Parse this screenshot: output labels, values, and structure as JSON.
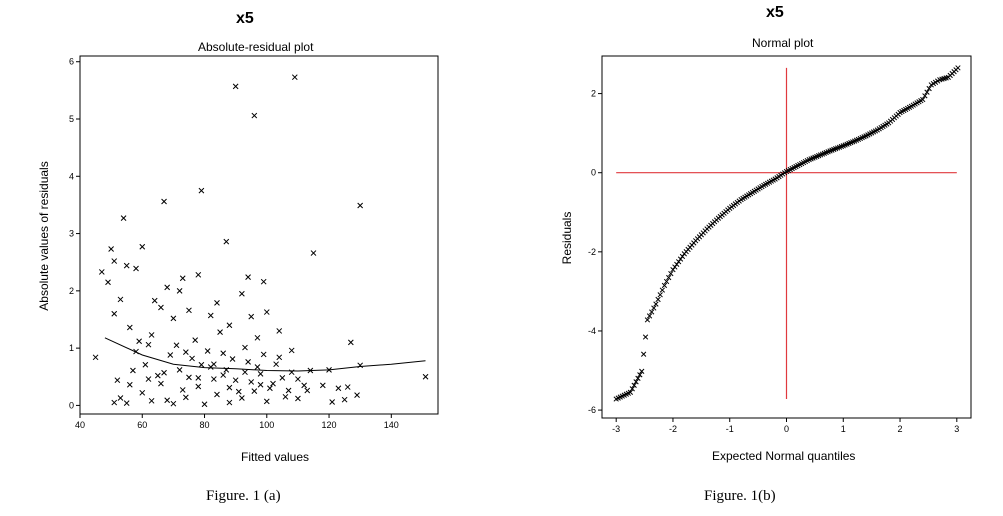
{
  "panel_a": {
    "var_title": "x5",
    "plot_title": "Absolute-residual plot",
    "xlabel": "Fitted values",
    "ylabel": "Absolute values of residuals",
    "caption": "Figure. 1 (a)"
  },
  "panel_b": {
    "var_title": "x5",
    "plot_title": "Normal plot",
    "xlabel": "Expected Normal quantiles",
    "ylabel": "Residuals",
    "caption": "Figure. 1(b)"
  },
  "chart_data": [
    {
      "type": "scatter",
      "title": "Absolute-residual plot",
      "xlabel": "Fitted values",
      "ylabel": "Absolute values of residuals",
      "xlim": [
        40,
        155
      ],
      "ylim": [
        -0.15,
        6.1
      ],
      "xticks": [
        40,
        60,
        80,
        100,
        120,
        140
      ],
      "yticks": [
        0,
        1,
        2,
        3,
        4,
        5,
        6
      ],
      "grid": false,
      "marker": "x",
      "points": [
        [
          45,
          0.84
        ],
        [
          47,
          2.33
        ],
        [
          49,
          2.15
        ],
        [
          50,
          2.73
        ],
        [
          51,
          2.52
        ],
        [
          54,
          3.27
        ],
        [
          55,
          2.44
        ],
        [
          53,
          1.85
        ],
        [
          58,
          2.39
        ],
        [
          60,
          2.77
        ],
        [
          67,
          3.56
        ],
        [
          68,
          2.06
        ],
        [
          73,
          2.22
        ],
        [
          79,
          3.75
        ],
        [
          78,
          2.28
        ],
        [
          87,
          2.86
        ],
        [
          90,
          5.57
        ],
        [
          94,
          2.24
        ],
        [
          96,
          5.06
        ],
        [
          99,
          2.16
        ],
        [
          109,
          5.73
        ],
        [
          115,
          2.66
        ],
        [
          127,
          1.1
        ],
        [
          130,
          3.49
        ],
        [
          151,
          0.5
        ],
        [
          120,
          0.62
        ],
        [
          114,
          0.61
        ],
        [
          126,
          0.32
        ],
        [
          129,
          0.18
        ],
        [
          123,
          0.3
        ],
        [
          121,
          0.06
        ],
        [
          125,
          0.1
        ],
        [
          118,
          0.35
        ],
        [
          113,
          0.26
        ],
        [
          110,
          0.46
        ],
        [
          130,
          0.7
        ],
        [
          92,
          1.95
        ],
        [
          84,
          1.79
        ],
        [
          72,
          2.0
        ],
        [
          64,
          1.83
        ],
        [
          51,
          1.6
        ],
        [
          56,
          1.36
        ],
        [
          59,
          1.12
        ],
        [
          62,
          1.06
        ],
        [
          66,
          1.71
        ],
        [
          70,
          1.52
        ],
        [
          75,
          1.66
        ],
        [
          82,
          1.57
        ],
        [
          88,
          1.4
        ],
        [
          95,
          1.55
        ],
        [
          100,
          1.63
        ],
        [
          104,
          1.3
        ],
        [
          97,
          1.18
        ],
        [
          108,
          0.96
        ],
        [
          53,
          0.13
        ],
        [
          52,
          0.44
        ],
        [
          51,
          0.05
        ],
        [
          57,
          0.61
        ],
        [
          55,
          0.04
        ],
        [
          60,
          0.22
        ],
        [
          63,
          0.08
        ],
        [
          65,
          0.52
        ],
        [
          68,
          0.09
        ],
        [
          70,
          0.03
        ],
        [
          72,
          0.62
        ],
        [
          74,
          0.14
        ],
        [
          76,
          0.82
        ],
        [
          78,
          0.33
        ],
        [
          80,
          0.02
        ],
        [
          82,
          0.67
        ],
        [
          84,
          0.19
        ],
        [
          86,
          0.91
        ],
        [
          88,
          0.05
        ],
        [
          90,
          0.44
        ],
        [
          92,
          0.13
        ],
        [
          94,
          0.76
        ],
        [
          96,
          0.25
        ],
        [
          98,
          0.55
        ],
        [
          100,
          0.07
        ],
        [
          102,
          0.38
        ],
        [
          104,
          0.84
        ],
        [
          106,
          0.15
        ],
        [
          108,
          0.58
        ],
        [
          110,
          0.12
        ],
        [
          112,
          0.35
        ],
        [
          58,
          0.94
        ],
        [
          61,
          0.71
        ],
        [
          63,
          1.23
        ],
        [
          66,
          0.38
        ],
        [
          69,
          0.88
        ],
        [
          71,
          1.05
        ],
        [
          73,
          0.27
        ],
        [
          75,
          0.49
        ],
        [
          77,
          1.14
        ],
        [
          79,
          0.71
        ],
        [
          81,
          0.95
        ],
        [
          83,
          0.46
        ],
        [
          85,
          1.28
        ],
        [
          87,
          0.62
        ],
        [
          89,
          0.81
        ],
        [
          91,
          0.24
        ],
        [
          93,
          1.01
        ],
        [
          95,
          0.41
        ],
        [
          97,
          0.67
        ],
        [
          99,
          0.89
        ],
        [
          101,
          0.3
        ],
        [
          103,
          0.72
        ],
        [
          105,
          0.48
        ],
        [
          107,
          0.26
        ],
        [
          56,
          0.36
        ],
        [
          62,
          0.46
        ],
        [
          67,
          0.57
        ],
        [
          74,
          0.93
        ],
        [
          78,
          0.48
        ],
        [
          83,
          0.72
        ],
        [
          88,
          0.31
        ],
        [
          93,
          0.58
        ],
        [
          98,
          0.36
        ],
        [
          86,
          0.53
        ]
      ],
      "trend_line": {
        "x": [
          48,
          60,
          70,
          80,
          90,
          100,
          110,
          120,
          130,
          140,
          151
        ],
        "y": [
          1.18,
          0.88,
          0.72,
          0.66,
          0.64,
          0.61,
          0.6,
          0.62,
          0.68,
          0.72,
          0.78
        ]
      }
    },
    {
      "type": "scatter",
      "title": "Normal plot",
      "xlabel": "Expected Normal quantiles",
      "ylabel": "Residuals",
      "xlim": [
        -3.25,
        3.25
      ],
      "ylim": [
        -6.2,
        2.95
      ],
      "xticks": [
        -3,
        -2,
        -1,
        0,
        1,
        2,
        3
      ],
      "yticks": [
        -6,
        -4,
        -2,
        0,
        2
      ],
      "grid": false,
      "marker": "x",
      "reference_lines": {
        "x": 0,
        "y": 0,
        "x_extent": [
          -3,
          3
        ],
        "y_extent": [
          -5.72,
          2.65
        ],
        "color": "#e0393e"
      },
      "quantile_curve": {
        "x": [
          -3.0,
          -2.75,
          -2.55,
          -2.45,
          -2.3,
          -2.15,
          -2.0,
          -1.8,
          -1.6,
          -1.4,
          -1.2,
          -1.0,
          -0.8,
          -0.6,
          -0.4,
          -0.2,
          0.0,
          0.2,
          0.4,
          0.6,
          0.8,
          1.0,
          1.2,
          1.4,
          1.6,
          1.8,
          2.0,
          2.2,
          2.4,
          2.55,
          2.7,
          2.85,
          3.02
        ],
        "y": [
          -5.72,
          -5.55,
          -5.02,
          -3.72,
          -3.32,
          -2.85,
          -2.45,
          -2.05,
          -1.72,
          -1.42,
          -1.15,
          -0.9,
          -0.68,
          -0.5,
          -0.32,
          -0.16,
          0.03,
          0.18,
          0.33,
          0.45,
          0.57,
          0.68,
          0.8,
          0.93,
          1.08,
          1.26,
          1.52,
          1.68,
          1.85,
          2.22,
          2.35,
          2.41,
          2.65
        ]
      }
    }
  ]
}
